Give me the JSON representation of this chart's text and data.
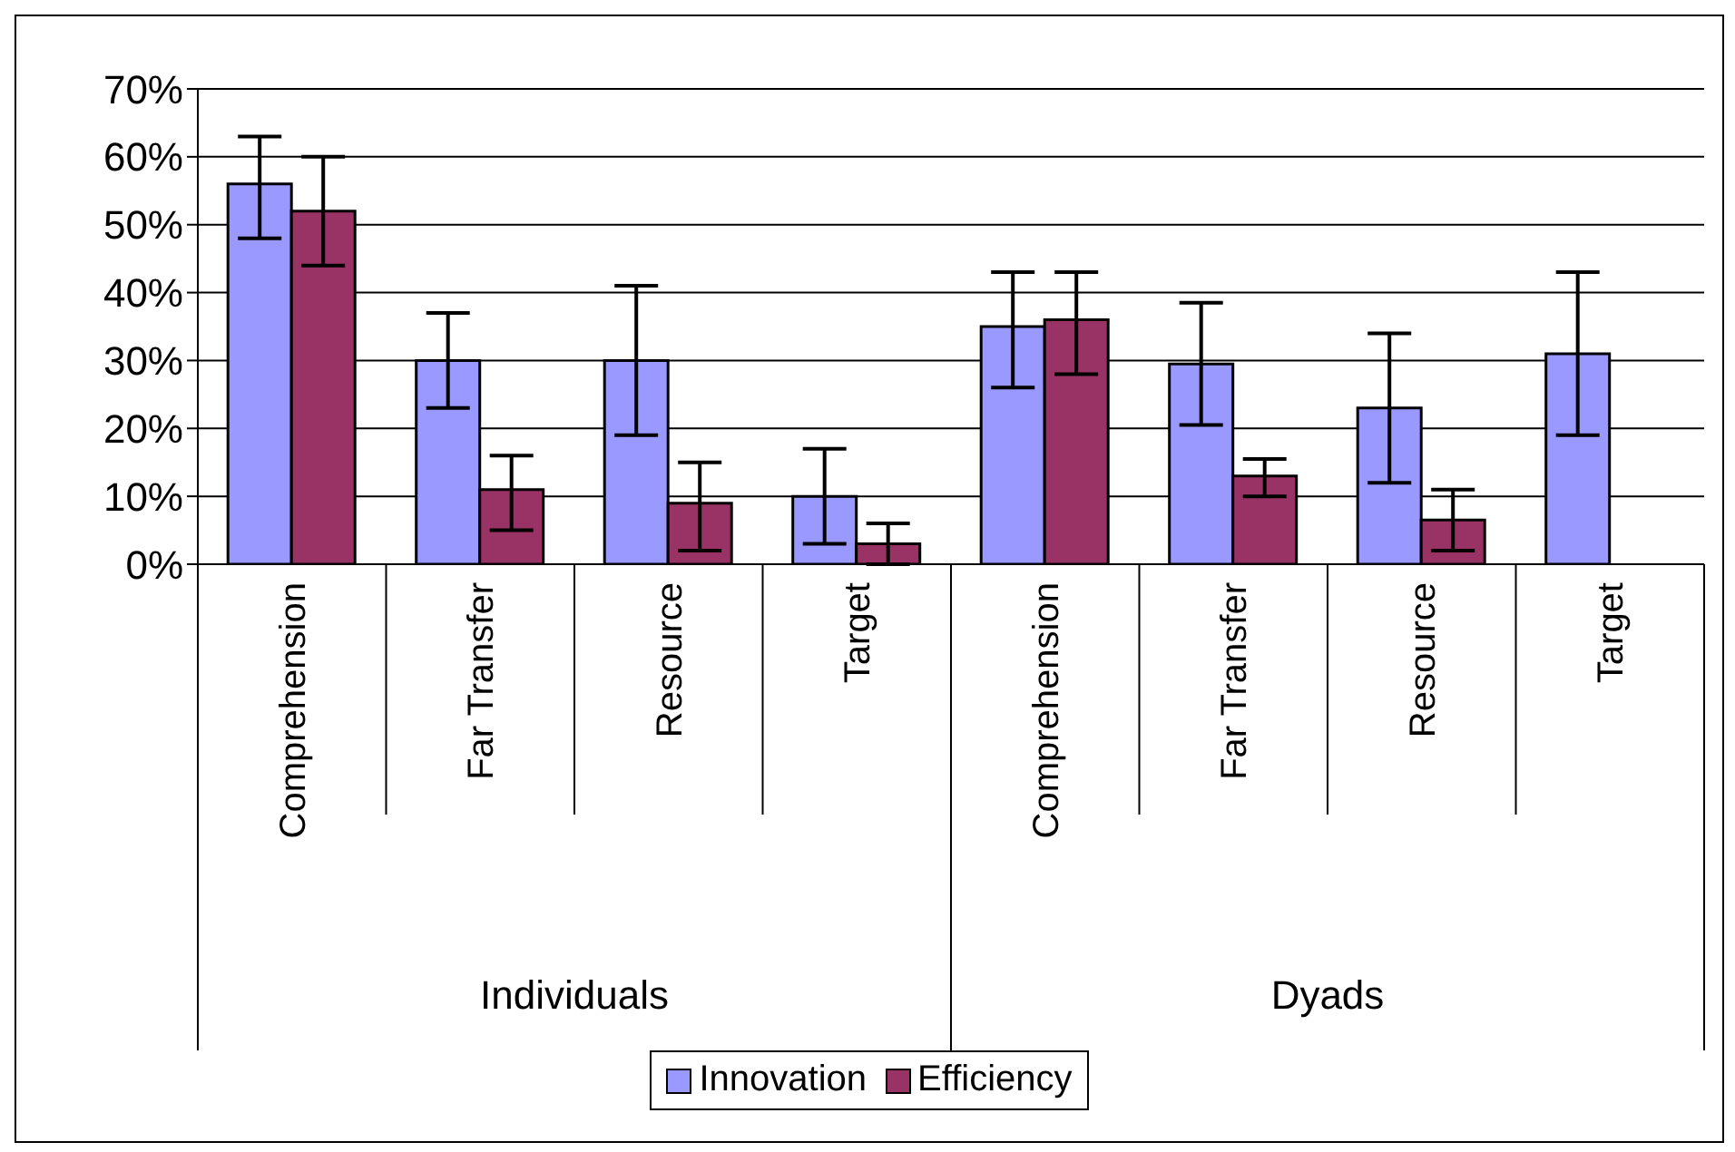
{
  "chart_data": {
    "type": "bar",
    "categories": [
      "Comprehension",
      "Far Transfer",
      "Resource",
      "Target",
      "Comprehension",
      "Far Transfer",
      "Resource",
      "Target"
    ],
    "series": [
      {
        "name": "Innovation",
        "color": "#9999ff",
        "values": [
          56,
          30,
          30,
          10,
          35,
          29.5,
          23,
          31
        ],
        "errors": [
          [
            48,
            63
          ],
          [
            23,
            37
          ],
          [
            19,
            41
          ],
          [
            3,
            17
          ],
          [
            26,
            43
          ],
          [
            20.5,
            38.5
          ],
          [
            12,
            34
          ],
          [
            19,
            43
          ]
        ]
      },
      {
        "name": "Efficiency",
        "color": "#993366",
        "values": [
          52,
          11,
          9,
          3,
          36,
          13,
          6.5,
          0
        ],
        "errors": [
          [
            44,
            60
          ],
          [
            5,
            16
          ],
          [
            2,
            15
          ],
          [
            0,
            6
          ],
          [
            28,
            43
          ],
          [
            10,
            15.5
          ],
          [
            2,
            11
          ],
          null
        ]
      }
    ],
    "annotations": [
      "Individuals",
      "Dyads"
    ],
    "ylim": [
      0,
      70
    ],
    "yticks": [
      {
        "value": 0,
        "label": "0%"
      },
      {
        "value": 10,
        "label": "10%"
      },
      {
        "value": 20,
        "label": "20%"
      },
      {
        "value": 30,
        "label": "30%"
      },
      {
        "value": 40,
        "label": "40%"
      },
      {
        "value": 50,
        "label": "50%"
      },
      {
        "value": 60,
        "label": "60%"
      },
      {
        "value": 70,
        "label": "70%"
      }
    ],
    "grid": "y",
    "legend": "bottom"
  }
}
